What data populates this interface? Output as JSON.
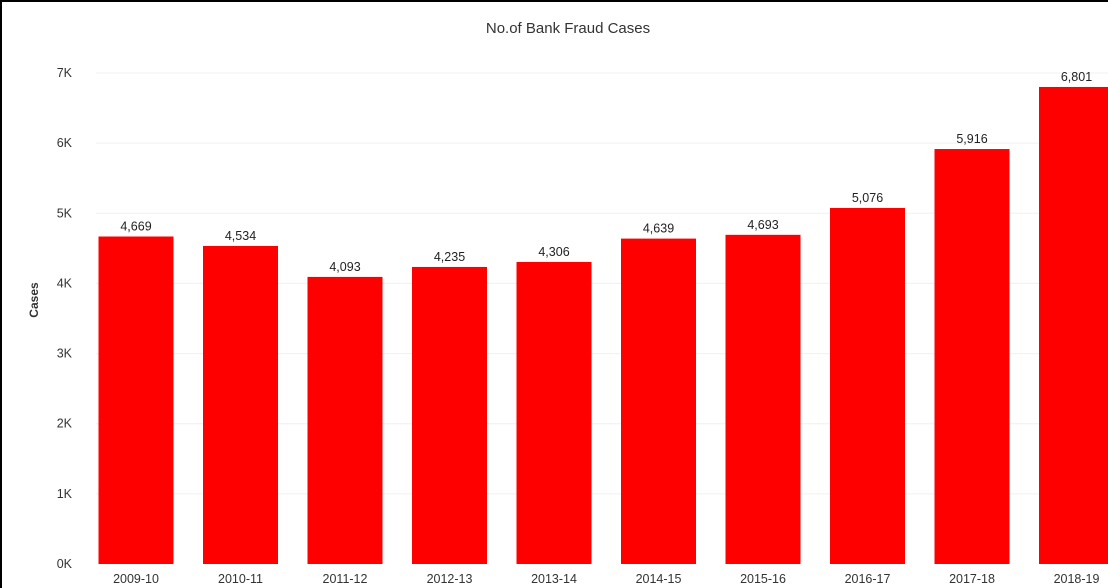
{
  "chart_data": {
    "type": "bar",
    "title": "No.of Bank Fraud Cases",
    "xlabel": "",
    "ylabel": "Cases",
    "categories": [
      "2009-10",
      "2010-11",
      "2011-12",
      "2012-13",
      "2013-14",
      "2014-15",
      "2015-16",
      "2016-17",
      "2017-18",
      "2018-19"
    ],
    "values": [
      4669,
      4534,
      4093,
      4235,
      4306,
      4639,
      4693,
      5076,
      5916,
      6801
    ],
    "value_labels": [
      "4,669",
      "4,534",
      "4,093",
      "4,235",
      "4,306",
      "4,639",
      "4,693",
      "5,076",
      "5,916",
      "6,801"
    ],
    "ylim": [
      0,
      7000
    ],
    "yticks": [
      0,
      1000,
      2000,
      3000,
      4000,
      5000,
      6000,
      7000
    ],
    "ytick_labels": [
      "0K",
      "1K",
      "2K",
      "3K",
      "4K",
      "5K",
      "6K",
      "7K"
    ],
    "bar_color": "#ff0000",
    "grid": true
  }
}
